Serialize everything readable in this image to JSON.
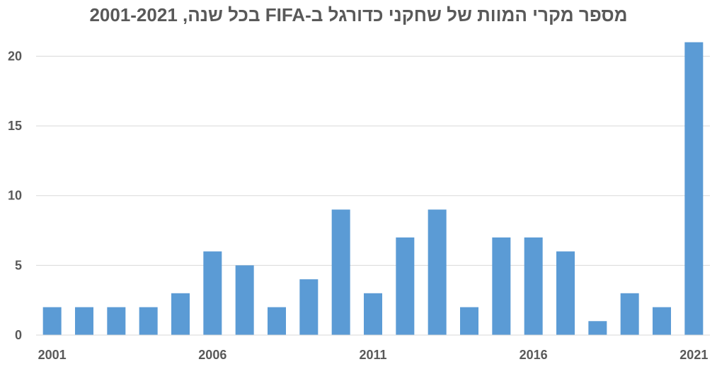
{
  "chart_data": {
    "type": "bar",
    "title": "מספר מקרי המוות של שחקני כדורגל ב-FIFA בכל שנה, 2001-2021",
    "categories": [
      "2001",
      "2002",
      "2003",
      "2004",
      "2005",
      "2006",
      "2007",
      "2008",
      "2009",
      "2010",
      "2011",
      "2012",
      "2013",
      "2014",
      "2015",
      "2016",
      "2017",
      "2018",
      "2019",
      "2020",
      "2021"
    ],
    "values": [
      2,
      2,
      2,
      2,
      3,
      6,
      5,
      2,
      4,
      9,
      3,
      7,
      9,
      2,
      7,
      7,
      6,
      1,
      3,
      2,
      21
    ],
    "x_tick_labels": [
      "2001",
      "2006",
      "2011",
      "2016",
      "2021"
    ],
    "y_tick_labels": [
      "0",
      "5",
      "10",
      "15",
      "20"
    ],
    "ylim": [
      0,
      22
    ],
    "grid": true,
    "bar_color": "#5B9BD5",
    "grid_color": "#D9D9D9",
    "text_color": "#595959"
  }
}
